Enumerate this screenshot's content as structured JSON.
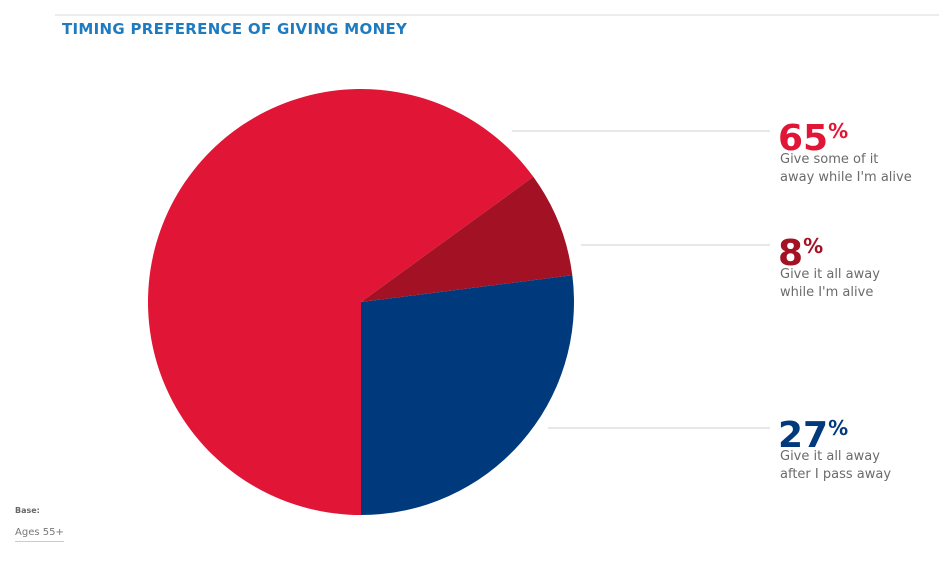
{
  "chart_data": {
    "type": "pie",
    "title": "TIMING PREFERENCE OF GIVING MONEY",
    "categories": [
      "Give some of it\naway while I'm alive",
      "Give it all away\nwhile I'm alive",
      "Give it all away\nafter I pass away"
    ],
    "values": [
      65,
      8,
      27
    ],
    "unit": "%",
    "colors": [
      "#e11536",
      "#a31224",
      "#003a7d"
    ],
    "base_label": "Base:",
    "base": "Ages 55+"
  }
}
